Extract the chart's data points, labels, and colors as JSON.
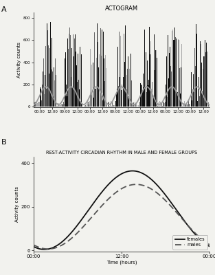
{
  "title_a": "ACTOGRAM",
  "title_b": "REST-ACTIVITY CIRCADIAN RHYTHM IN MALE AND FEMALE GROUPS",
  "ylabel_a": "Activity counts",
  "ylabel_b": "Activity counts",
  "xlabel_b": "Time (hours)",
  "panel_a_yticks": [
    0,
    200,
    400,
    600,
    800
  ],
  "panel_a_ylim": [
    -5,
    850
  ],
  "panel_b_yticks": [
    0,
    200,
    400
  ],
  "panel_b_ylim": [
    -5,
    430
  ],
  "panel_b_xtick_labels": [
    "00:00",
    "12:00",
    "00:00"
  ],
  "bg_color": "#f2f2ee",
  "bar_color_dark": "#111111",
  "bar_color_mid": "#666666",
  "bar_color_light": "#aaaaaa",
  "sine_color": "#999999",
  "females_color": "#111111",
  "males_color": "#555555",
  "num_days": 7,
  "female_mesor": 185,
  "female_amplitude": 180,
  "female_acrophase_hour": 13.5,
  "male_mesor": 155,
  "male_amplitude": 148,
  "male_acrophase_hour": 14.0,
  "actogram_sine_mesor": 100,
  "actogram_sine_amplitude": 80,
  "actogram_sine_acrophase_hour": 6.0
}
